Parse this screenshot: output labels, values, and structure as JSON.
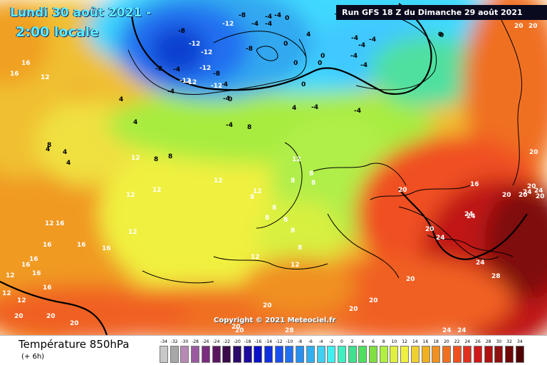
{
  "header": {
    "date_text": "Lundi 30 août 2021 - ",
    "time_text": "2:00 locale",
    "run_text": "Run GFS 18 Z du Dimanche 29 août 2021"
  },
  "copyright": "Copyright © 2021 Meteociel.fr",
  "field": {
    "title": "Température 850hPa",
    "subtitle": "(+ 6h)"
  },
  "legend": {
    "ticks": [
      "-34",
      "-32",
      "-30",
      "-28",
      "-26",
      "-24",
      "-22",
      "-20",
      "-18",
      "-16",
      "-14",
      "-12",
      "-10",
      "-8",
      "-6",
      "-4",
      "-2",
      "0",
      "2",
      "4",
      "6",
      "8",
      "10",
      "12",
      "14",
      "16",
      "18",
      "20",
      "22",
      "24",
      "26",
      "28",
      "30",
      "32",
      "34"
    ],
    "colors": [
      "#c8c8c8",
      "#a8a8a8",
      "#b68ab4",
      "#9b5aa0",
      "#7a2c7e",
      "#5a1560",
      "#3a0a4a",
      "#2a0a6a",
      "#1a0aa0",
      "#0a10c8",
      "#1030e0",
      "#1850f0",
      "#2070f0",
      "#2890f0",
      "#30b0f0",
      "#40d0f0",
      "#40f0f0",
      "#40f0c0",
      "#40e090",
      "#50e060",
      "#80e040",
      "#b0f040",
      "#e0f040",
      "#f0f040",
      "#f0d030",
      "#f0b020",
      "#f09020",
      "#f07020",
      "#f05020",
      "#e03020",
      "#d01818",
      "#b01010",
      "#901010",
      "#700808",
      "#500000"
    ]
  },
  "map_labels": [
    {
      "text": "-8",
      "color": "#000"
    },
    {
      "text": "-12",
      "color": "#fff"
    },
    {
      "text": "-8",
      "color": "#000"
    },
    {
      "text": "-4",
      "color": "#000"
    },
    {
      "text": "-4",
      "color": "#000"
    },
    {
      "text": "-12",
      "color": "#fff"
    },
    {
      "text": "-12",
      "color": "#fff"
    },
    {
      "text": "-8",
      "color": "#000"
    },
    {
      "text": "-4",
      "color": "#000"
    },
    {
      "text": "-8",
      "color": "#000"
    },
    {
      "text": "-12",
      "color": "#fff"
    },
    {
      "text": "-4",
      "color": "#000"
    },
    {
      "text": "-8",
      "color": "#000"
    },
    {
      "text": "-12",
      "color": "#fff"
    },
    {
      "text": "-12",
      "color": "#fff"
    },
    {
      "text": "-12",
      "color": "#fff"
    },
    {
      "text": "-4",
      "color": "#000"
    },
    {
      "text": "-4",
      "color": "#000"
    },
    {
      "text": "-4",
      "color": "#000"
    },
    {
      "text": "0",
      "color": "#000"
    },
    {
      "text": "-4",
      "color": "#000"
    },
    {
      "text": "0",
      "color": "#000"
    },
    {
      "text": "0",
      "color": "#000"
    },
    {
      "text": "-4",
      "color": "#000"
    },
    {
      "text": "-4",
      "color": "#000"
    },
    {
      "text": "-4",
      "color": "#000"
    },
    {
      "text": "-4",
      "color": "#000"
    },
    {
      "text": "0",
      "color": "#000"
    },
    {
      "text": "0",
      "color": "#000"
    },
    {
      "text": "4",
      "color": "#000"
    },
    {
      "text": "0",
      "color": "#000"
    },
    {
      "text": "0",
      "color": "#000"
    },
    {
      "text": "0",
      "color": "#000"
    },
    {
      "text": "-4",
      "color": "#000"
    },
    {
      "text": "-4",
      "color": "#000"
    },
    {
      "text": "-4",
      "color": "#000"
    },
    {
      "text": "-4",
      "color": "#000"
    },
    {
      "text": "4",
      "color": "#000"
    },
    {
      "text": "0",
      "color": "#000"
    },
    {
      "text": "4",
      "color": "#000"
    },
    {
      "text": "4",
      "color": "#000"
    },
    {
      "text": "4",
      "color": "#000"
    },
    {
      "text": "4",
      "color": "#000"
    },
    {
      "text": "4",
      "color": "#000"
    },
    {
      "text": "8",
      "color": "#000"
    },
    {
      "text": "8",
      "color": "#000"
    },
    {
      "text": "8",
      "color": "#000"
    },
    {
      "text": "8",
      "color": "#000"
    },
    {
      "text": "16",
      "color": "#fff"
    },
    {
      "text": "16",
      "color": "#fff"
    },
    {
      "text": "12",
      "color": "#fff"
    },
    {
      "text": "12",
      "color": "#fff"
    },
    {
      "text": "12",
      "color": "#fff"
    },
    {
      "text": "12",
      "color": "#fff"
    },
    {
      "text": "12",
      "color": "#fff"
    },
    {
      "text": "12",
      "color": "#fff"
    },
    {
      "text": "16",
      "color": "#fff"
    },
    {
      "text": "12",
      "color": "#fff"
    },
    {
      "text": "8",
      "color": "#fff"
    },
    {
      "text": "8",
      "color": "#fff"
    },
    {
      "text": "8",
      "color": "#fff"
    },
    {
      "text": "12",
      "color": "#fff"
    },
    {
      "text": "8",
      "color": "#fff"
    },
    {
      "text": "8",
      "color": "#fff"
    },
    {
      "text": "8",
      "color": "#fff"
    },
    {
      "text": "8",
      "color": "#fff"
    },
    {
      "text": "8",
      "color": "#fff"
    },
    {
      "text": "12",
      "color": "#fff"
    },
    {
      "text": "8",
      "color": "#fff"
    },
    {
      "text": "12",
      "color": "#fff"
    },
    {
      "text": "12",
      "color": "#fff"
    },
    {
      "text": "16",
      "color": "#fff"
    },
    {
      "text": "16",
      "color": "#fff"
    },
    {
      "text": "16",
      "color": "#fff"
    },
    {
      "text": "16",
      "color": "#fff"
    },
    {
      "text": "16",
      "color": "#fff"
    },
    {
      "text": "16",
      "color": "#fff"
    },
    {
      "text": "12",
      "color": "#fff"
    },
    {
      "text": "16",
      "color": "#fff"
    },
    {
      "text": "12",
      "color": "#fff"
    },
    {
      "text": "20",
      "color": "#fff"
    },
    {
      "text": "20",
      "color": "#fff"
    },
    {
      "text": "20",
      "color": "#fff"
    },
    {
      "text": "20",
      "color": "#fff"
    },
    {
      "text": "20",
      "color": "#fff"
    },
    {
      "text": "20",
      "color": "#fff"
    },
    {
      "text": "20",
      "color": "#fff"
    },
    {
      "text": "20",
      "color": "#fff"
    },
    {
      "text": "16",
      "color": "#fff"
    },
    {
      "text": "20",
      "color": "#fff"
    },
    {
      "text": "20",
      "color": "#fff"
    },
    {
      "text": "24",
      "color": "#fff"
    },
    {
      "text": "20",
      "color": "#fff"
    },
    {
      "text": "24",
      "color": "#fff"
    },
    {
      "text": "24",
      "color": "#fff"
    },
    {
      "text": "20",
      "color": "#fff"
    },
    {
      "text": "24",
      "color": "#fff"
    },
    {
      "text": "28",
      "color": "#fff"
    },
    {
      "text": "24",
      "color": "#fff"
    },
    {
      "text": "24",
      "color": "#fff"
    },
    {
      "text": "28",
      "color": "#fff"
    },
    {
      "text": "20",
      "color": "#fff"
    },
    {
      "text": "20",
      "color": "#fff"
    },
    {
      "text": "20",
      "color": "#fff"
    },
    {
      "text": "20",
      "color": "#fff"
    },
    {
      "text": "20",
      "color": "#fff"
    },
    {
      "text": "24",
      "color": "#fff"
    },
    {
      "text": "24",
      "color": "#fff"
    },
    {
      "text": "20",
      "color": "#fff"
    },
    {
      "text": "12",
      "color": "#fff"
    }
  ]
}
